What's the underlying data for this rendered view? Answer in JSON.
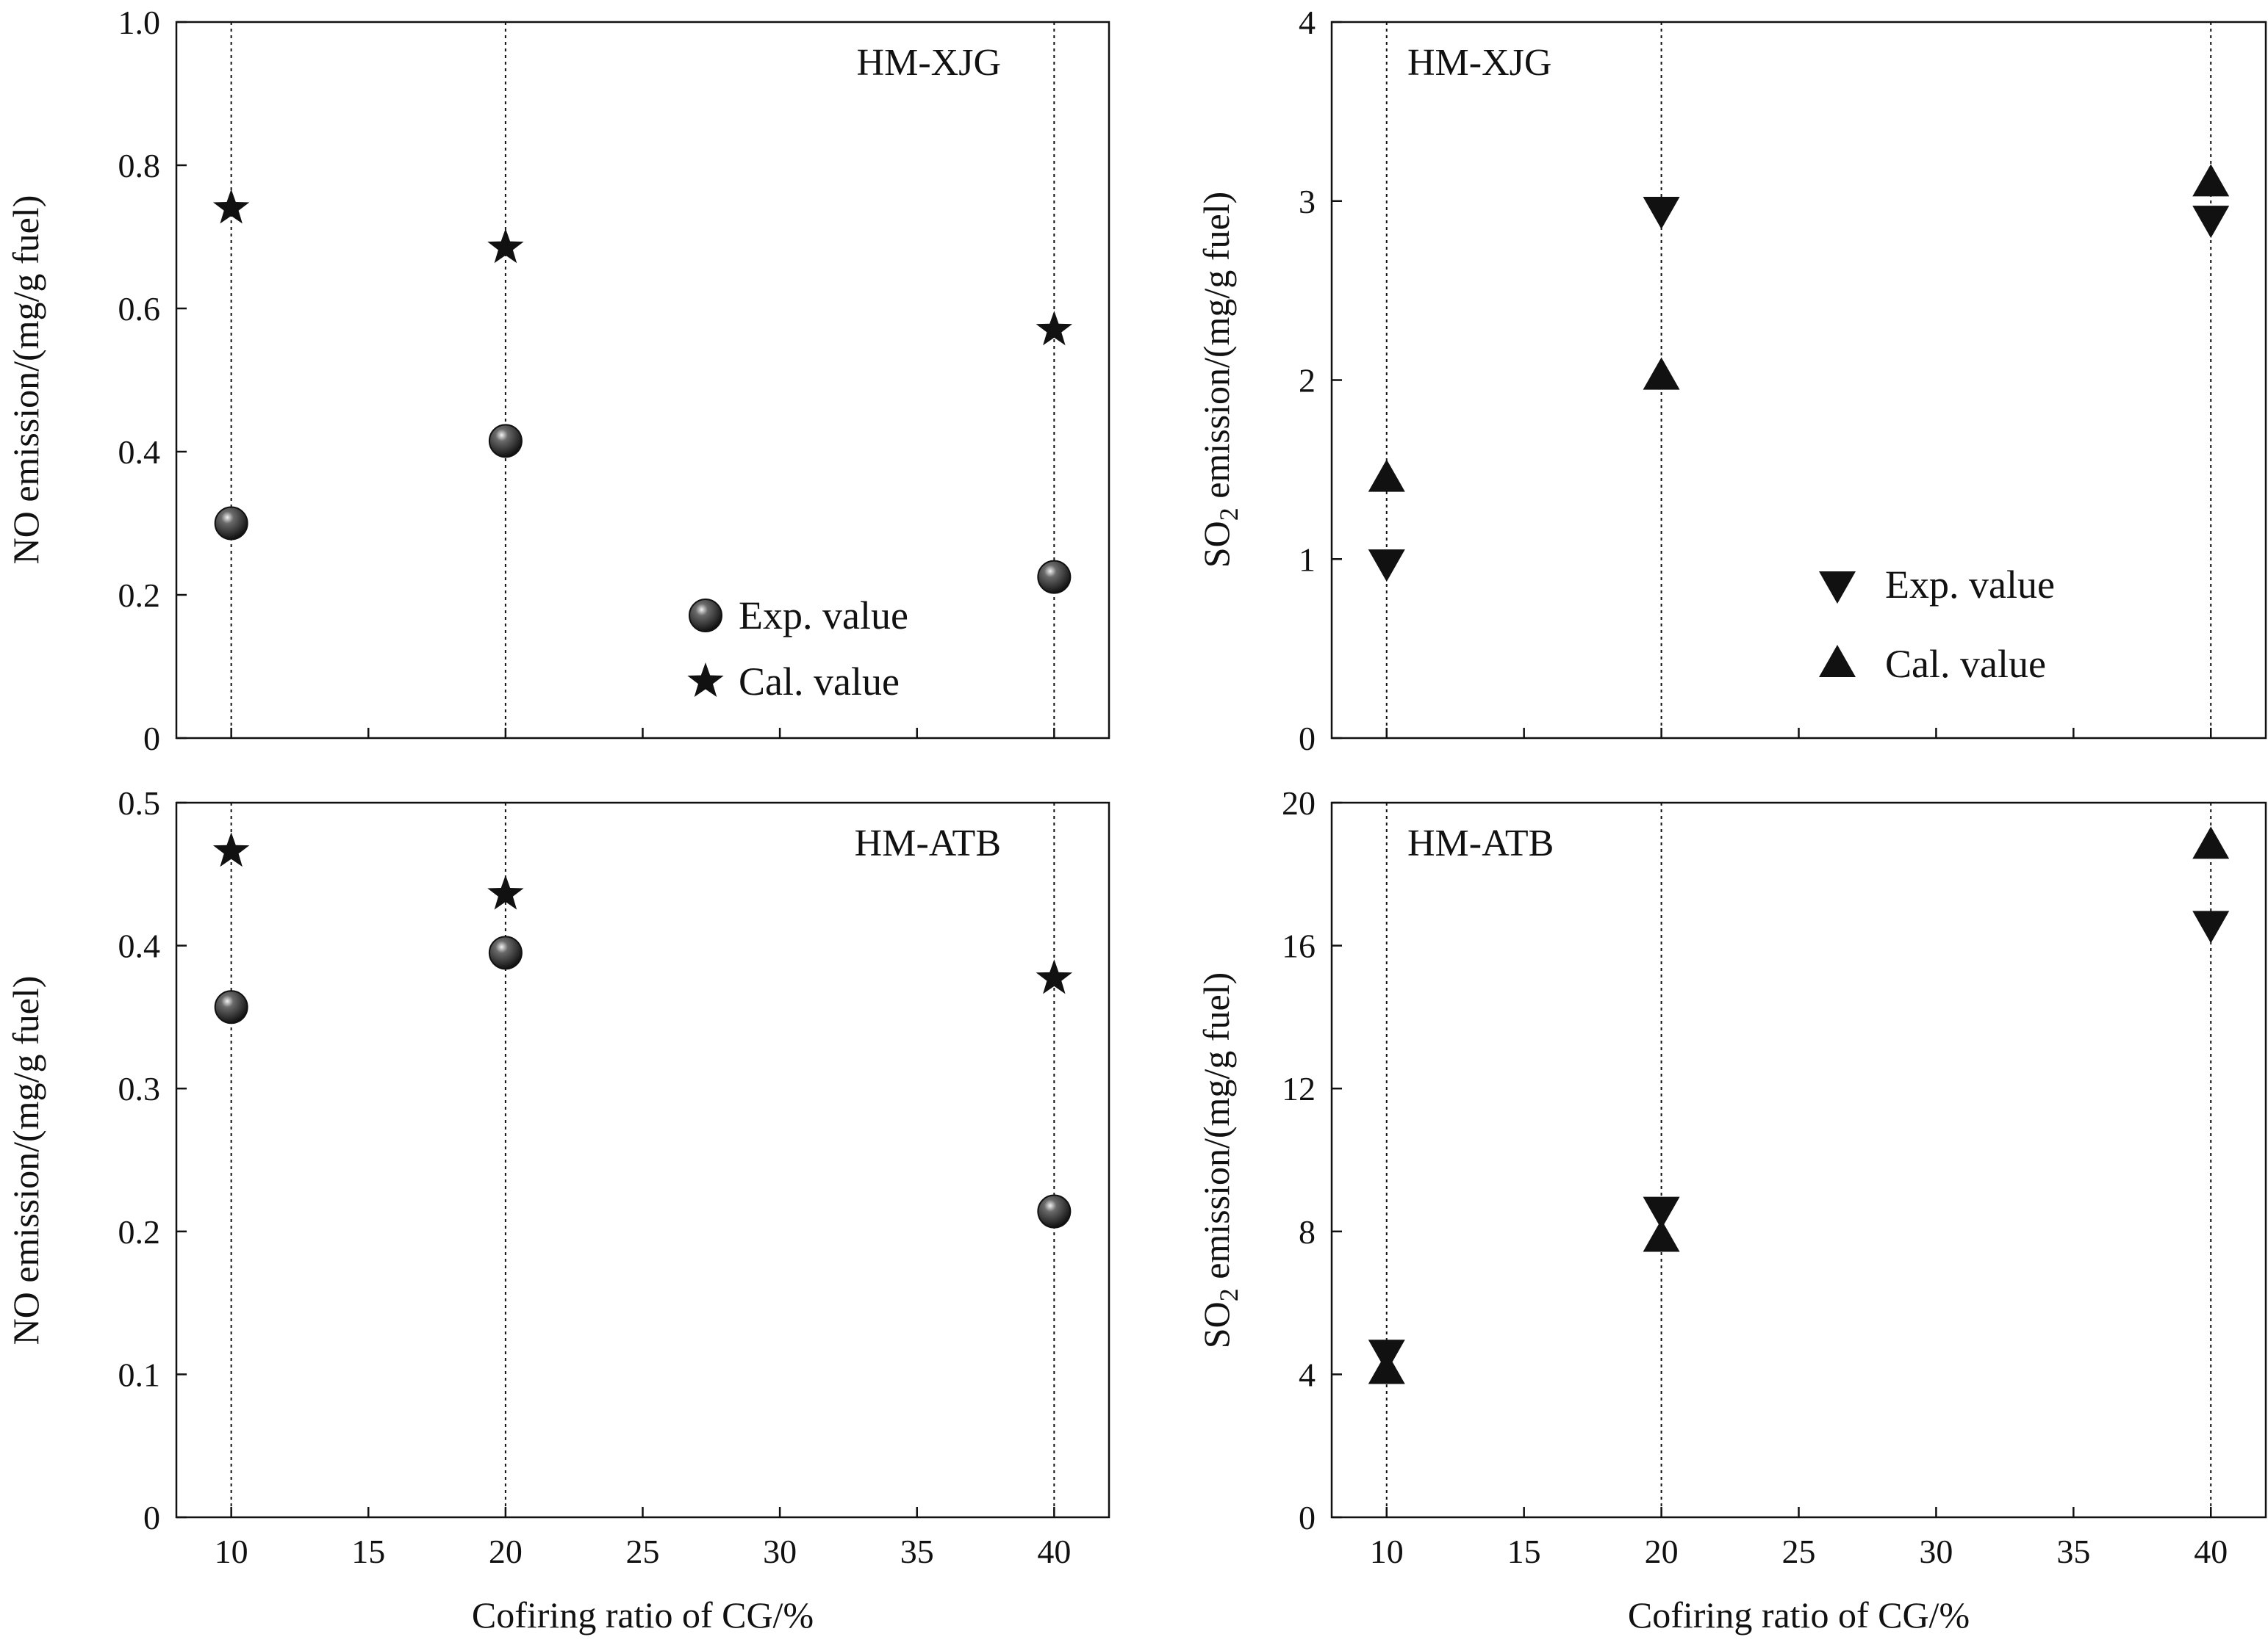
{
  "chart_data": [
    {
      "id": "no-xjg",
      "type": "scatter",
      "panel_label": "HM-XJG",
      "xlabel": "",
      "ylabel": "NO emission/(mg/g fuel)",
      "xlim": [
        8,
        42
      ],
      "ylim": [
        0,
        1.0
      ],
      "xticks": [
        10,
        15,
        20,
        25,
        30,
        35,
        40
      ],
      "xtick_labels": [],
      "yticks": [
        0,
        0.2,
        0.4,
        0.6,
        0.8,
        1.0
      ],
      "ytick_labels": [
        "0",
        "0.2",
        "0.4",
        "0.6",
        "0.8",
        "1.0"
      ],
      "guides_x": [
        10,
        20,
        40
      ],
      "legend": {
        "position": "bottom-right",
        "entries": [
          "exp",
          "cal"
        ]
      },
      "series": [
        {
          "name": "Exp. value",
          "marker": "sphere",
          "x": [
            10,
            20,
            40
          ],
          "y": [
            0.3,
            0.415,
            0.225
          ]
        },
        {
          "name": "Cal. value",
          "marker": "star",
          "x": [
            10,
            20,
            40
          ],
          "y": [
            0.74,
            0.685,
            0.57
          ]
        }
      ]
    },
    {
      "id": "so2-xjg",
      "type": "scatter",
      "panel_label": "HM-XJG",
      "xlabel": "",
      "ylabel": "SO",
      "ylabel_sub": "2",
      "ylabel_rest": " emission/(mg/g fuel)",
      "xlim": [
        8,
        42
      ],
      "ylim": [
        0,
        4
      ],
      "xticks": [
        10,
        15,
        20,
        25,
        30,
        35,
        40
      ],
      "xtick_labels": [],
      "yticks": [
        0,
        1,
        2,
        3,
        4
      ],
      "ytick_labels": [
        "0",
        "1",
        "2",
        "3",
        "4"
      ],
      "guides_x": [
        10,
        20,
        40
      ],
      "legend": {
        "position": "bottom-right",
        "entries": [
          "exp",
          "cal"
        ]
      },
      "series": [
        {
          "name": "Exp. value",
          "marker": "triangle-down",
          "x": [
            10,
            20,
            40
          ],
          "y": [
            0.98,
            2.95,
            2.9
          ]
        },
        {
          "name": "Cal. value",
          "marker": "triangle-up",
          "x": [
            10,
            20,
            40
          ],
          "y": [
            1.45,
            2.02,
            3.1
          ]
        }
      ]
    },
    {
      "id": "no-atb",
      "type": "scatter",
      "panel_label": "HM-ATB",
      "xlabel": "Cofiring ratio of CG/%",
      "ylabel": "NO emission/(mg/g fuel)",
      "xlim": [
        8,
        42
      ],
      "ylim": [
        0,
        0.5
      ],
      "xticks": [
        10,
        15,
        20,
        25,
        30,
        35,
        40
      ],
      "xtick_labels": [
        "10",
        "15",
        "20",
        "25",
        "30",
        "35",
        "40"
      ],
      "yticks": [
        0,
        0.1,
        0.2,
        0.3,
        0.4,
        0.5
      ],
      "ytick_labels": [
        "0",
        "0.1",
        "0.2",
        "0.3",
        "0.4",
        "0.5"
      ],
      "guides_x": [
        10,
        20,
        40
      ],
      "legend": null,
      "series": [
        {
          "name": "Exp. value",
          "marker": "sphere",
          "x": [
            10,
            20,
            40
          ],
          "y": [
            0.357,
            0.395,
            0.214
          ]
        },
        {
          "name": "Cal. value",
          "marker": "star",
          "x": [
            10,
            20,
            40
          ],
          "y": [
            0.466,
            0.436,
            0.377
          ]
        }
      ]
    },
    {
      "id": "so2-atb",
      "type": "scatter",
      "panel_label": "HM-ATB",
      "xlabel": "Cofiring ratio of CG/%",
      "ylabel": "SO",
      "ylabel_sub": "2",
      "ylabel_rest": " emission/(mg/g fuel)",
      "xlim": [
        8,
        42
      ],
      "ylim": [
        0,
        20
      ],
      "xticks": [
        10,
        15,
        20,
        25,
        30,
        35,
        40
      ],
      "xtick_labels": [
        "10",
        "15",
        "20",
        "25",
        "30",
        "35",
        "40"
      ],
      "yticks": [
        0,
        4,
        8,
        12,
        16,
        20
      ],
      "ytick_labels": [
        "0",
        "4",
        "8",
        "12",
        "16",
        "20"
      ],
      "guides_x": [
        10,
        20,
        40
      ],
      "legend": null,
      "series": [
        {
          "name": "Exp. value",
          "marker": "triangle-down",
          "x": [
            10,
            20,
            40
          ],
          "y": [
            4.6,
            8.6,
            16.6
          ]
        },
        {
          "name": "Cal. value",
          "marker": "triangle-up",
          "x": [
            10,
            20,
            40
          ],
          "y": [
            4.1,
            7.8,
            18.8
          ]
        }
      ]
    }
  ]
}
